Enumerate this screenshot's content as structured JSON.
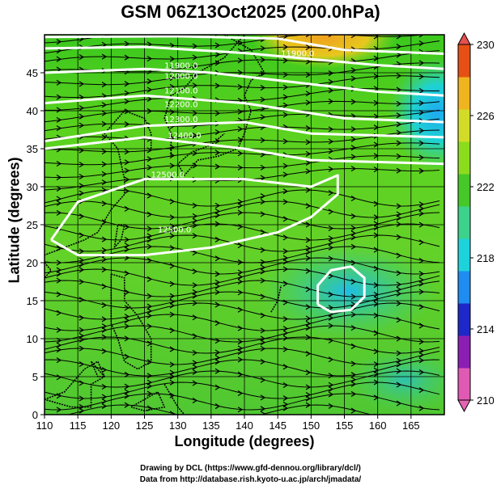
{
  "title": "GSM 06Z13Oct2025 (200.0hPa)",
  "xlabel": "Longitude (degrees)",
  "ylabel": "Latitude  (degrees)",
  "credits": [
    "Drawing by DCL (https://www.gfd-dennou.org/library/dcl/)",
    "Data from http://database.rish.kyoto-u.ac.jp/arch/jmadata/"
  ],
  "map": {
    "lon_range": [
      110,
      170
    ],
    "lat_range": [
      0,
      50
    ],
    "x_ticks": [
      "110",
      "115",
      "120",
      "125",
      "130",
      "135",
      "140",
      "145",
      "150",
      "155",
      "160",
      "165"
    ],
    "y_ticks": [
      "0",
      "5",
      "10",
      "15",
      "20",
      "25",
      "30",
      "35",
      "40",
      "45"
    ],
    "colorbar": {
      "min": 210,
      "max": 230,
      "tick_labels": [
        "210",
        "214",
        "218",
        "222",
        "226",
        "230"
      ],
      "colors": [
        "#e05ab4",
        "#8c1eb4",
        "#1e28c8",
        "#1e8cf0",
        "#1ed2dc",
        "#3cd28c",
        "#46c828",
        "#8cdc1e",
        "#d2dc28",
        "#f0b41e",
        "#e65014"
      ]
    },
    "contour_labels": [
      {
        "text": "11900.0",
        "lon": 148,
        "lat": 47.2
      },
      {
        "text": "11900.0",
        "lon": 130.5,
        "lat": 45.6
      },
      {
        "text": "12000.0",
        "lon": 130.5,
        "lat": 44.2
      },
      {
        "text": "12100.0",
        "lon": 130.5,
        "lat": 42.3
      },
      {
        "text": "12200.0",
        "lon": 130.5,
        "lat": 40.5
      },
      {
        "text": "12300.0",
        "lon": 130.5,
        "lat": 38.5
      },
      {
        "text": "12400.0",
        "lon": 131,
        "lat": 36.4
      },
      {
        "text": "12500.0",
        "lon": 128.5,
        "lat": 31.2
      },
      {
        "text": "12500.0",
        "lon": 129.5,
        "lat": 24.0
      }
    ]
  }
}
